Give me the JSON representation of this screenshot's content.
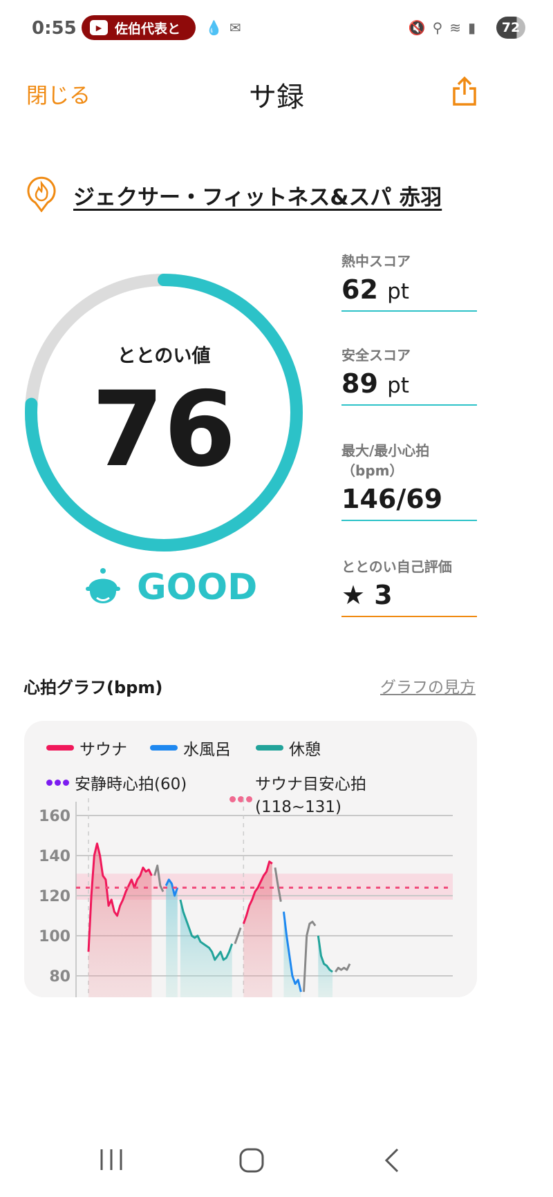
{
  "status_bar": {
    "time": "0:55",
    "notification": "佐伯代表と",
    "battery": "72"
  },
  "header": {
    "close_label": "閉じる",
    "title": "サ録",
    "share_icon": "share-icon"
  },
  "facility": {
    "name": "ジェクサー・フィットネス&スパ 赤羽",
    "icon": "sauna-flame-pin-icon"
  },
  "gauge": {
    "label": "ととのい値",
    "value": "76",
    "fraction": 0.76,
    "color": "#2cc2c8",
    "track_color": "#dcdcdc",
    "rating": "GOOD"
  },
  "stats": [
    {
      "label": "熱中スコア",
      "value": "62",
      "unit": "pt"
    },
    {
      "label": "安全スコア",
      "value": "89",
      "unit": "pt"
    },
    {
      "label": "最大/最小心拍",
      "label2": "（bpm）",
      "value": "146/69",
      "unit": ""
    },
    {
      "label": "ととのい自己評価",
      "value": "★ 3",
      "unit": ""
    }
  ],
  "heart_graph": {
    "title": "心拍グラフ(bpm)",
    "howto_link": "グラフの見方"
  },
  "chart_data": {
    "type": "line",
    "legend": [
      {
        "name": "サウナ",
        "color": "#f0185a"
      },
      {
        "name": "水風呂",
        "color": "#1e88f0"
      },
      {
        "name": "休憩",
        "color": "#22a39a"
      },
      {
        "name": "安静時心拍(60)",
        "color": "#7c1cf0",
        "style": "dotted"
      },
      {
        "name": "サウナ目安心拍",
        "name2": "(118~131)",
        "color": "#f06a90",
        "style": "dotted"
      }
    ],
    "yticks": [
      "160",
      "140",
      "120",
      "100",
      "80"
    ],
    "ylim": [
      76,
      163
    ],
    "target_band": [
      118,
      131
    ],
    "target_line": 124,
    "grid": true,
    "segments": [
      {
        "phase": "sauna",
        "values": [
          92,
          120,
          140,
          146,
          140,
          130,
          128,
          115,
          118,
          112,
          110,
          115,
          118,
          122,
          125,
          128,
          124,
          128,
          130,
          134,
          132,
          133,
          130
        ]
      },
      {
        "phase": "transition",
        "values": [
          130,
          135,
          125,
          122
        ]
      },
      {
        "phase": "cold",
        "values": [
          125,
          128,
          126,
          120,
          124
        ]
      },
      {
        "phase": "rest",
        "values": [
          118,
          112,
          108,
          104,
          100,
          99,
          100,
          97,
          96,
          95,
          94,
          92,
          88,
          90,
          92,
          88,
          89,
          92,
          96
        ]
      },
      {
        "phase": "transition",
        "values": [
          96,
          100,
          104
        ]
      },
      {
        "phase": "sauna",
        "values": [
          106,
          110,
          115,
          118,
          122,
          124,
          127,
          130,
          132,
          137,
          136
        ]
      },
      {
        "phase": "transition",
        "values": [
          134,
          125,
          117
        ]
      },
      {
        "phase": "cold",
        "values": [
          112,
          100,
          90,
          80,
          76,
          78,
          72
        ]
      },
      {
        "phase": "transition",
        "values": [
          72,
          100,
          106,
          107,
          105
        ]
      },
      {
        "phase": "rest",
        "values": [
          100,
          90,
          86,
          85,
          83,
          82
        ]
      },
      {
        "phase": "transition",
        "values": [
          82,
          84,
          83,
          84,
          83,
          86
        ]
      }
    ]
  },
  "nav": {
    "recent": "recent-apps-icon",
    "home": "home-icon",
    "back": "back-icon"
  }
}
